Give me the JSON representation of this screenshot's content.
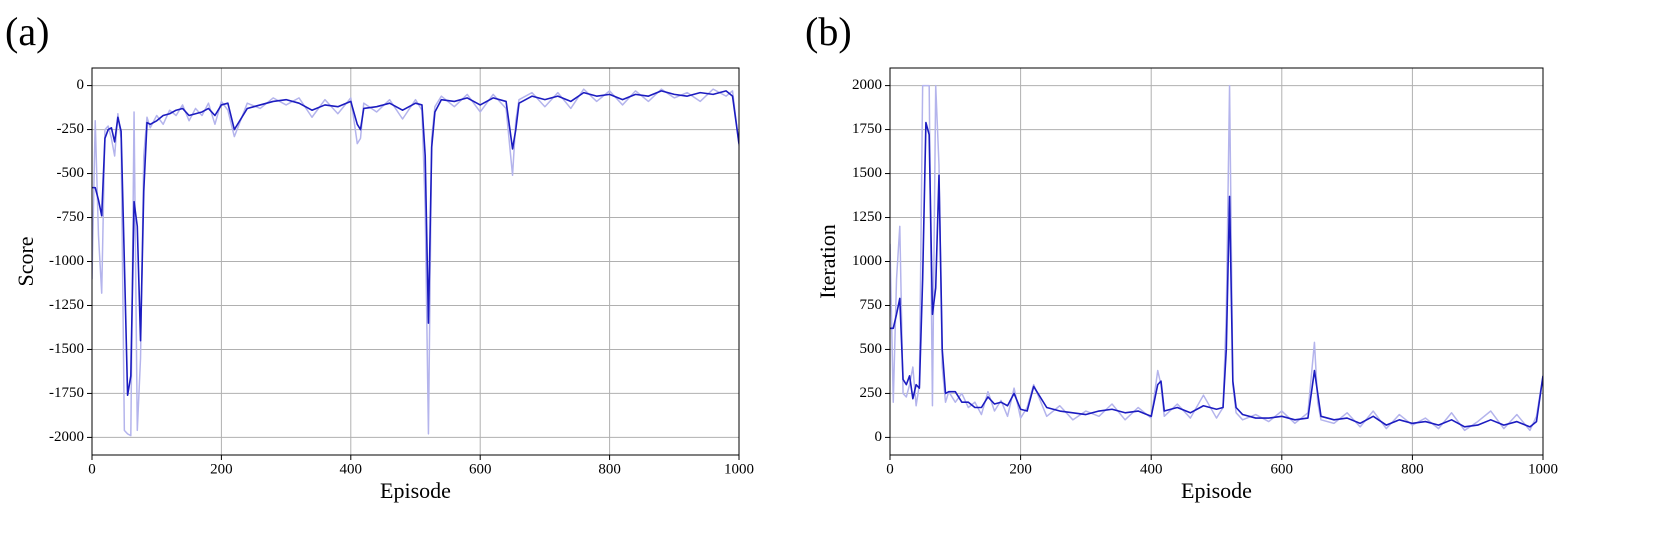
{
  "chart_data": [
    {
      "type": "line",
      "title": "(a)",
      "xlabel": "Episode",
      "ylabel": "Score",
      "xlim": [
        0,
        1000
      ],
      "xticks": [
        0,
        200,
        400,
        600,
        800,
        1000
      ],
      "ylim": [
        -2100,
        100
      ],
      "yticks": [
        0,
        -250,
        -500,
        -750,
        -1000,
        -1250,
        -1500,
        -1750,
        -2000
      ],
      "grid": true,
      "x": [
        0,
        5,
        10,
        15,
        20,
        25,
        30,
        35,
        40,
        45,
        50,
        55,
        60,
        65,
        70,
        75,
        80,
        85,
        90,
        100,
        110,
        120,
        130,
        140,
        150,
        160,
        170,
        180,
        190,
        200,
        210,
        220,
        240,
        260,
        280,
        300,
        320,
        340,
        360,
        380,
        400,
        410,
        415,
        420,
        440,
        460,
        480,
        500,
        510,
        515,
        520,
        525,
        530,
        540,
        560,
        580,
        600,
        620,
        640,
        650,
        655,
        660,
        680,
        700,
        720,
        740,
        760,
        780,
        800,
        820,
        840,
        860,
        880,
        900,
        920,
        940,
        960,
        980,
        990,
        1000
      ],
      "series": [
        {
          "color": "#b4b4ec",
          "width": 1.5,
          "values": [
            -1100,
            -200,
            -850,
            -1180,
            -250,
            -230,
            -300,
            -400,
            -160,
            -300,
            -1960,
            -1980,
            -1990,
            -150,
            -1960,
            -1550,
            -400,
            -180,
            -240,
            -170,
            -220,
            -140,
            -170,
            -110,
            -200,
            -130,
            -170,
            -100,
            -220,
            -90,
            -140,
            -290,
            -100,
            -130,
            -70,
            -110,
            -70,
            -180,
            -80,
            -160,
            -70,
            -330,
            -300,
            -100,
            -150,
            -80,
            -190,
            -80,
            -140,
            -700,
            -1980,
            -300,
            -120,
            -60,
            -120,
            -50,
            -150,
            -50,
            -130,
            -510,
            -200,
            -80,
            -40,
            -120,
            -40,
            -130,
            -20,
            -90,
            -30,
            -110,
            -30,
            -90,
            -20,
            -70,
            -40,
            -90,
            -20,
            -60,
            -30,
            -340
          ]
        },
        {
          "color": "#1c1cc0",
          "width": 1.6,
          "values": [
            -580,
            -580,
            -650,
            -740,
            -300,
            -250,
            -240,
            -320,
            -180,
            -260,
            -1000,
            -1760,
            -1650,
            -660,
            -800,
            -1450,
            -600,
            -210,
            -220,
            -200,
            -170,
            -160,
            -140,
            -130,
            -170,
            -160,
            -150,
            -130,
            -170,
            -110,
            -100,
            -250,
            -130,
            -110,
            -90,
            -80,
            -100,
            -140,
            -110,
            -120,
            -90,
            -220,
            -250,
            -130,
            -120,
            -100,
            -140,
            -100,
            -110,
            -400,
            -1350,
            -350,
            -150,
            -80,
            -90,
            -70,
            -110,
            -70,
            -90,
            -360,
            -250,
            -100,
            -60,
            -80,
            -60,
            -90,
            -40,
            -60,
            -50,
            -80,
            -50,
            -60,
            -30,
            -50,
            -60,
            -40,
            -50,
            -30,
            -60,
            -330
          ]
        }
      ]
    },
    {
      "type": "line",
      "title": "(b)",
      "xlabel": "Episode",
      "ylabel": "Iteration",
      "xlim": [
        0,
        1000
      ],
      "xticks": [
        0,
        200,
        400,
        600,
        800,
        1000
      ],
      "ylim": [
        -100,
        2100
      ],
      "yticks": [
        0,
        250,
        500,
        750,
        1000,
        1250,
        1500,
        1750,
        2000
      ],
      "grid": true,
      "x": [
        0,
        5,
        10,
        15,
        20,
        25,
        30,
        35,
        40,
        45,
        50,
        55,
        60,
        65,
        70,
        75,
        80,
        85,
        90,
        100,
        110,
        120,
        130,
        140,
        150,
        160,
        170,
        180,
        190,
        200,
        210,
        220,
        240,
        260,
        280,
        300,
        320,
        340,
        360,
        380,
        400,
        410,
        415,
        420,
        440,
        460,
        480,
        500,
        510,
        515,
        520,
        525,
        530,
        540,
        560,
        580,
        600,
        620,
        640,
        650,
        655,
        660,
        680,
        700,
        720,
        740,
        760,
        780,
        800,
        820,
        840,
        860,
        880,
        900,
        920,
        940,
        960,
        980,
        990,
        1000
      ],
      "series": [
        {
          "color": "#b4b4ec",
          "width": 1.5,
          "values": [
            1100,
            200,
            900,
            1200,
            250,
            230,
            300,
            400,
            180,
            300,
            2000,
            2000,
            2000,
            180,
            2000,
            1550,
            400,
            200,
            260,
            200,
            250,
            170,
            200,
            130,
            260,
            150,
            210,
            120,
            280,
            110,
            170,
            300,
            120,
            180,
            100,
            150,
            120,
            190,
            100,
            170,
            110,
            380,
            300,
            120,
            190,
            110,
            240,
            110,
            170,
            700,
            2000,
            300,
            140,
            100,
            130,
            90,
            150,
            80,
            140,
            540,
            200,
            100,
            80,
            140,
            60,
            150,
            50,
            130,
            70,
            110,
            50,
            140,
            40,
            90,
            150,
            50,
            130,
            40,
            120,
            350
          ]
        },
        {
          "color": "#1c1cc0",
          "width": 1.6,
          "values": [
            620,
            620,
            700,
            790,
            330,
            300,
            350,
            220,
            300,
            280,
            900,
            1790,
            1720,
            700,
            850,
            1490,
            500,
            250,
            260,
            260,
            200,
            200,
            170,
            170,
            230,
            190,
            200,
            180,
            250,
            160,
            150,
            290,
            170,
            150,
            140,
            130,
            150,
            160,
            140,
            150,
            120,
            300,
            320,
            150,
            170,
            140,
            180,
            160,
            170,
            500,
            1370,
            320,
            170,
            130,
            110,
            110,
            120,
            100,
            110,
            380,
            250,
            120,
            100,
            110,
            80,
            120,
            70,
            100,
            80,
            90,
            70,
            100,
            60,
            70,
            100,
            70,
            90,
            60,
            90,
            350
          ]
        }
      ]
    }
  ]
}
